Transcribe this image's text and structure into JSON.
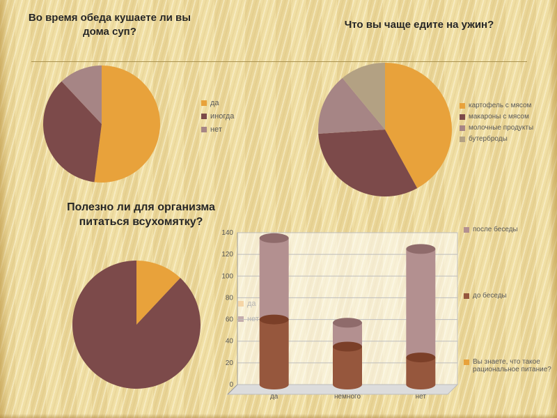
{
  "slide": {
    "bg_color": "#eedc9f",
    "divider_color": "#a8914f"
  },
  "chart_data": [
    {
      "type": "pie",
      "title": "Во время обеда кушаете ли вы дома суп?",
      "labels": [
        "да",
        "иногда",
        "нет"
      ],
      "values": [
        52,
        36,
        12
      ],
      "colors": [
        "#E8A23B",
        "#7C4A4A",
        "#A68585"
      ],
      "legend_position": "right"
    },
    {
      "type": "pie",
      "title": "Что вы чаще едите на ужин?",
      "labels": [
        "картофель с мясом",
        "макароны с мясом",
        "молочные продукты",
        "бутерброды"
      ],
      "values": [
        42,
        32,
        15,
        11
      ],
      "colors": [
        "#E8A23B",
        "#7C4A4A",
        "#A68585",
        "#B3A183"
      ],
      "legend_position": "right"
    },
    {
      "type": "pie",
      "title": "Полезно ли для организма питаться всухомятку?",
      "labels": [
        "да",
        "нет"
      ],
      "values": [
        12,
        88
      ],
      "colors": [
        "#E8A23B",
        "#7C4A4A"
      ],
      "legend_position": "right"
    },
    {
      "type": "bar",
      "stacked": true,
      "title": "Вы знаете, что такое рациональное питание?",
      "categories": [
        "да",
        "немного",
        "нет"
      ],
      "series": [
        {
          "name": "до беседы",
          "values": [
            60,
            35,
            25
          ],
          "color": "#96573D"
        },
        {
          "name": "после беседы",
          "values": [
            75,
            22,
            100
          ],
          "color": "#B39090"
        }
      ],
      "totals": [
        135,
        57,
        125
      ],
      "ylim": [
        0,
        140
      ],
      "yticks": [
        0,
        20,
        40,
        60,
        80,
        100,
        120,
        140
      ],
      "legend_items": [
        {
          "label": "после беседы",
          "color": "#B39090"
        },
        {
          "label": "до беседы",
          "color": "#96573D"
        },
        {
          "label": "Вы знаете, что такое рациональное питание?",
          "color": "#E8A23B"
        }
      ],
      "legend_position": "right",
      "grid": true
    }
  ]
}
